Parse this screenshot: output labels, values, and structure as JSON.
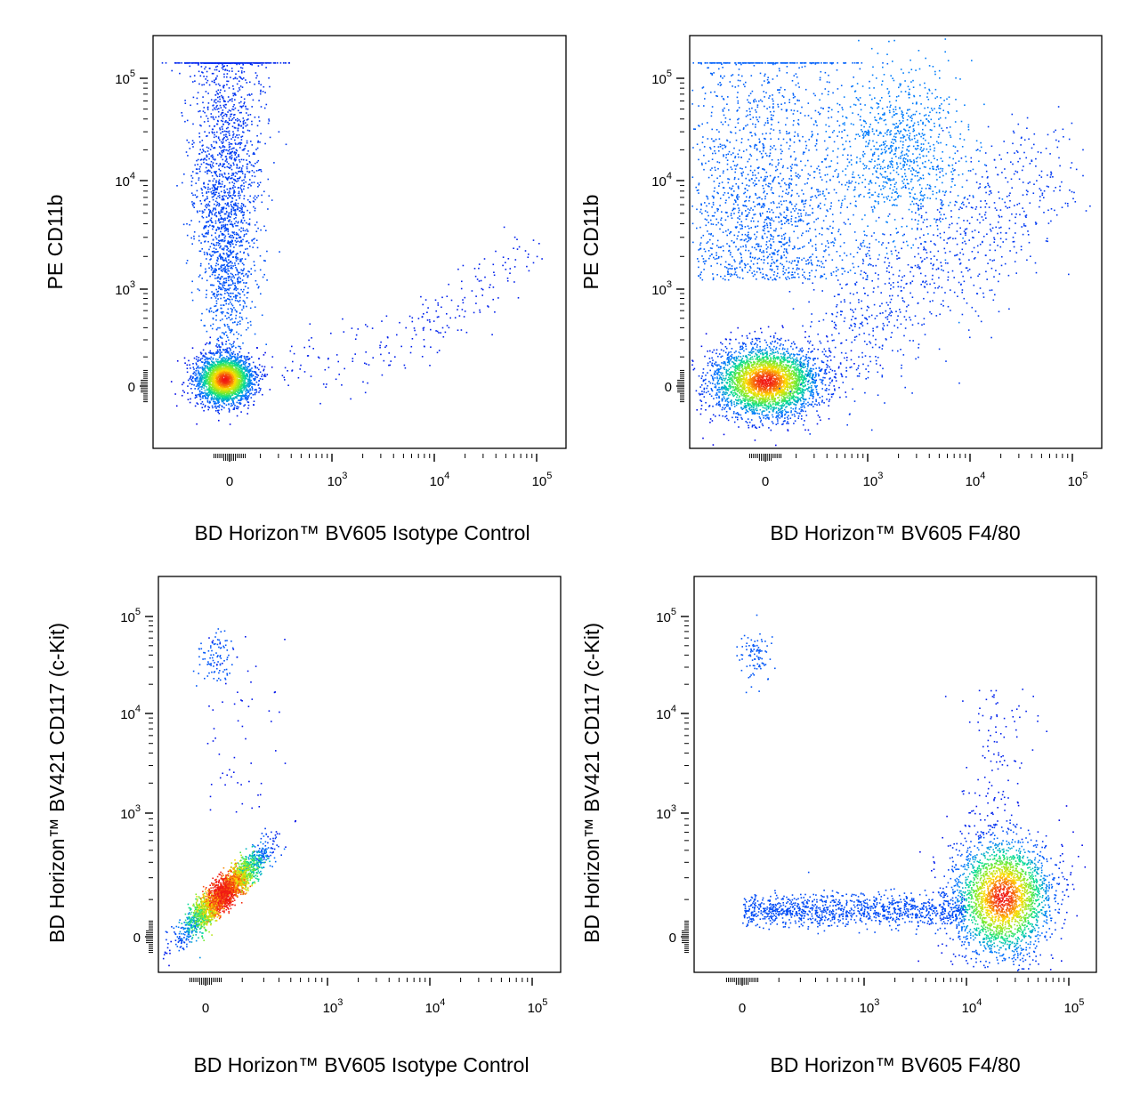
{
  "chart_data": [
    {
      "type": "scatter",
      "panel": "top-left",
      "xlabel": "BD Horizon™ BV605 Isotype Control",
      "ylabel": "PE CD11b",
      "x_ticks": [
        "0",
        "10^3",
        "10^4",
        "10^5"
      ],
      "y_ticks": [
        "0",
        "10^3",
        "10^4",
        "10^5"
      ],
      "x_scale": "biexponential",
      "y_scale": "biexponential",
      "color_map": "density: blue-green-yellow-red",
      "populations": [
        {
          "desc": "main",
          "x_center": 0,
          "y_center": 0,
          "density": "high"
        },
        {
          "desc": "CD11b+ streak",
          "x_center": 0,
          "y_range": [
            200,
            60000
          ]
        },
        {
          "desc": "diagonal tail",
          "x_range": [
            500,
            30000
          ],
          "y_range": [
            0,
            2000
          ],
          "density": "sparse"
        }
      ]
    },
    {
      "type": "scatter",
      "panel": "top-right",
      "xlabel": "BD Horizon™ BV605 F4/80",
      "ylabel": "PE CD11b",
      "x_ticks": [
        "0",
        "10^3",
        "10^4",
        "10^5"
      ],
      "y_ticks": [
        "0",
        "10^3",
        "10^4",
        "10^5"
      ],
      "x_scale": "biexponential",
      "y_scale": "biexponential",
      "color_map": "density: blue-green-yellow-red",
      "populations": [
        {
          "desc": "main",
          "x_center": 0,
          "y_center": 0,
          "density": "high"
        },
        {
          "desc": "CD11b+ F4/80- cloud",
          "x_center": 0,
          "y_range": [
            1000,
            60000
          ]
        },
        {
          "desc": "CD11b+ F4/80+",
          "x_center": 2000,
          "y_center": 20000
        },
        {
          "desc": "F4/80 intermediate",
          "x_range": [
            1000,
            30000
          ],
          "y_range": [
            100,
            3000
          ],
          "density": "sparse"
        }
      ]
    },
    {
      "type": "scatter",
      "panel": "bottom-left",
      "xlabel": "BD Horizon™ BV605 Isotype Control",
      "ylabel": "BD Horizon™ BV421 CD117 (c-Kit)",
      "x_ticks": [
        "0",
        "10^3",
        "10^4",
        "10^5"
      ],
      "y_ticks": [
        "0",
        "10^3",
        "10^4",
        "10^5"
      ],
      "x_scale": "biexponential",
      "y_scale": "biexponential",
      "color_map": "density: blue-green-yellow-red",
      "populations": [
        {
          "desc": "main diagonal",
          "x_range": [
            0,
            600
          ],
          "y_range": [
            0,
            600
          ],
          "density": "high"
        },
        {
          "desc": "c-Kit high",
          "x_center": 0,
          "y_center": 30000
        }
      ]
    },
    {
      "type": "scatter",
      "panel": "bottom-right",
      "xlabel": "BD Horizon™ BV605 F4/80",
      "ylabel": "BD Horizon™ BV421 CD117 (c-Kit)",
      "x_ticks": [
        "0",
        "10^3",
        "10^4",
        "10^5"
      ],
      "y_ticks": [
        "0",
        "10^3",
        "10^4",
        "10^5"
      ],
      "x_scale": "biexponential",
      "y_scale": "biexponential",
      "color_map": "density: blue-green-yellow-red",
      "populations": [
        {
          "desc": "F4/80+ macrophages",
          "x_center": 20000,
          "y_center": 200,
          "density": "high"
        },
        {
          "desc": "F4/80 low band",
          "x_range": [
            0,
            10000
          ],
          "y_center": 100
        },
        {
          "desc": "c-Kit high",
          "x_center": 0,
          "y_center": 30000
        }
      ]
    }
  ]
}
